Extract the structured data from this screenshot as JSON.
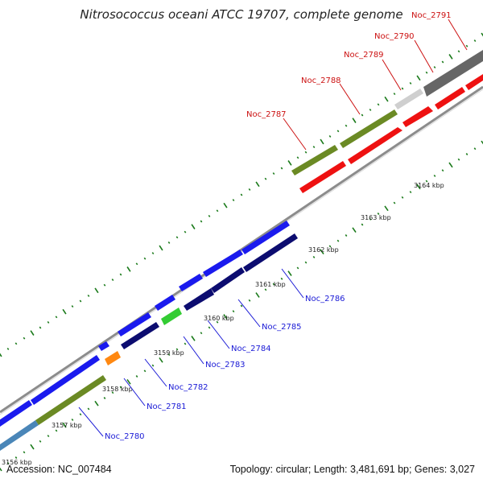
{
  "title": "Nitrosococcus oceani ATCC 19707, complete genome",
  "footer": {
    "accession": "Accession: NC_007484",
    "summary": "Topology: circular; Length: 3,481,691 bp; Genes: 3,027"
  },
  "colors": {
    "backbone": "#8c8c8c",
    "tick_dots": "#1a7a1a",
    "forward_label": "#cc1111",
    "reverse_label": "#1a1ad6",
    "blue": "#1a1aee",
    "navy": "#0c0c70",
    "olive": "#6b8a24",
    "red": "#ee1111",
    "green": "#33cc33",
    "orange": "#ff8811",
    "steelblue": "#4a86b8",
    "lightgray": "#cfcfcf",
    "darkgray": "#666666"
  },
  "ticks": [
    "3156 kbp",
    "3157 kbp",
    "3158 kbp",
    "3159 kbp",
    "3160 kbp",
    "3161 kbp",
    "3162 kbp",
    "3163 kbp",
    "3164 kbp"
  ],
  "top_labels": [
    "Noc_2787",
    "Noc_2788",
    "Noc_2789",
    "Noc_2790",
    "Noc_2791"
  ],
  "bottom_labels": [
    "Noc_2780",
    "Noc_2781",
    "Noc_2782",
    "Noc_2783",
    "Noc_2784",
    "Noc_2785",
    "Noc_2786"
  ]
}
